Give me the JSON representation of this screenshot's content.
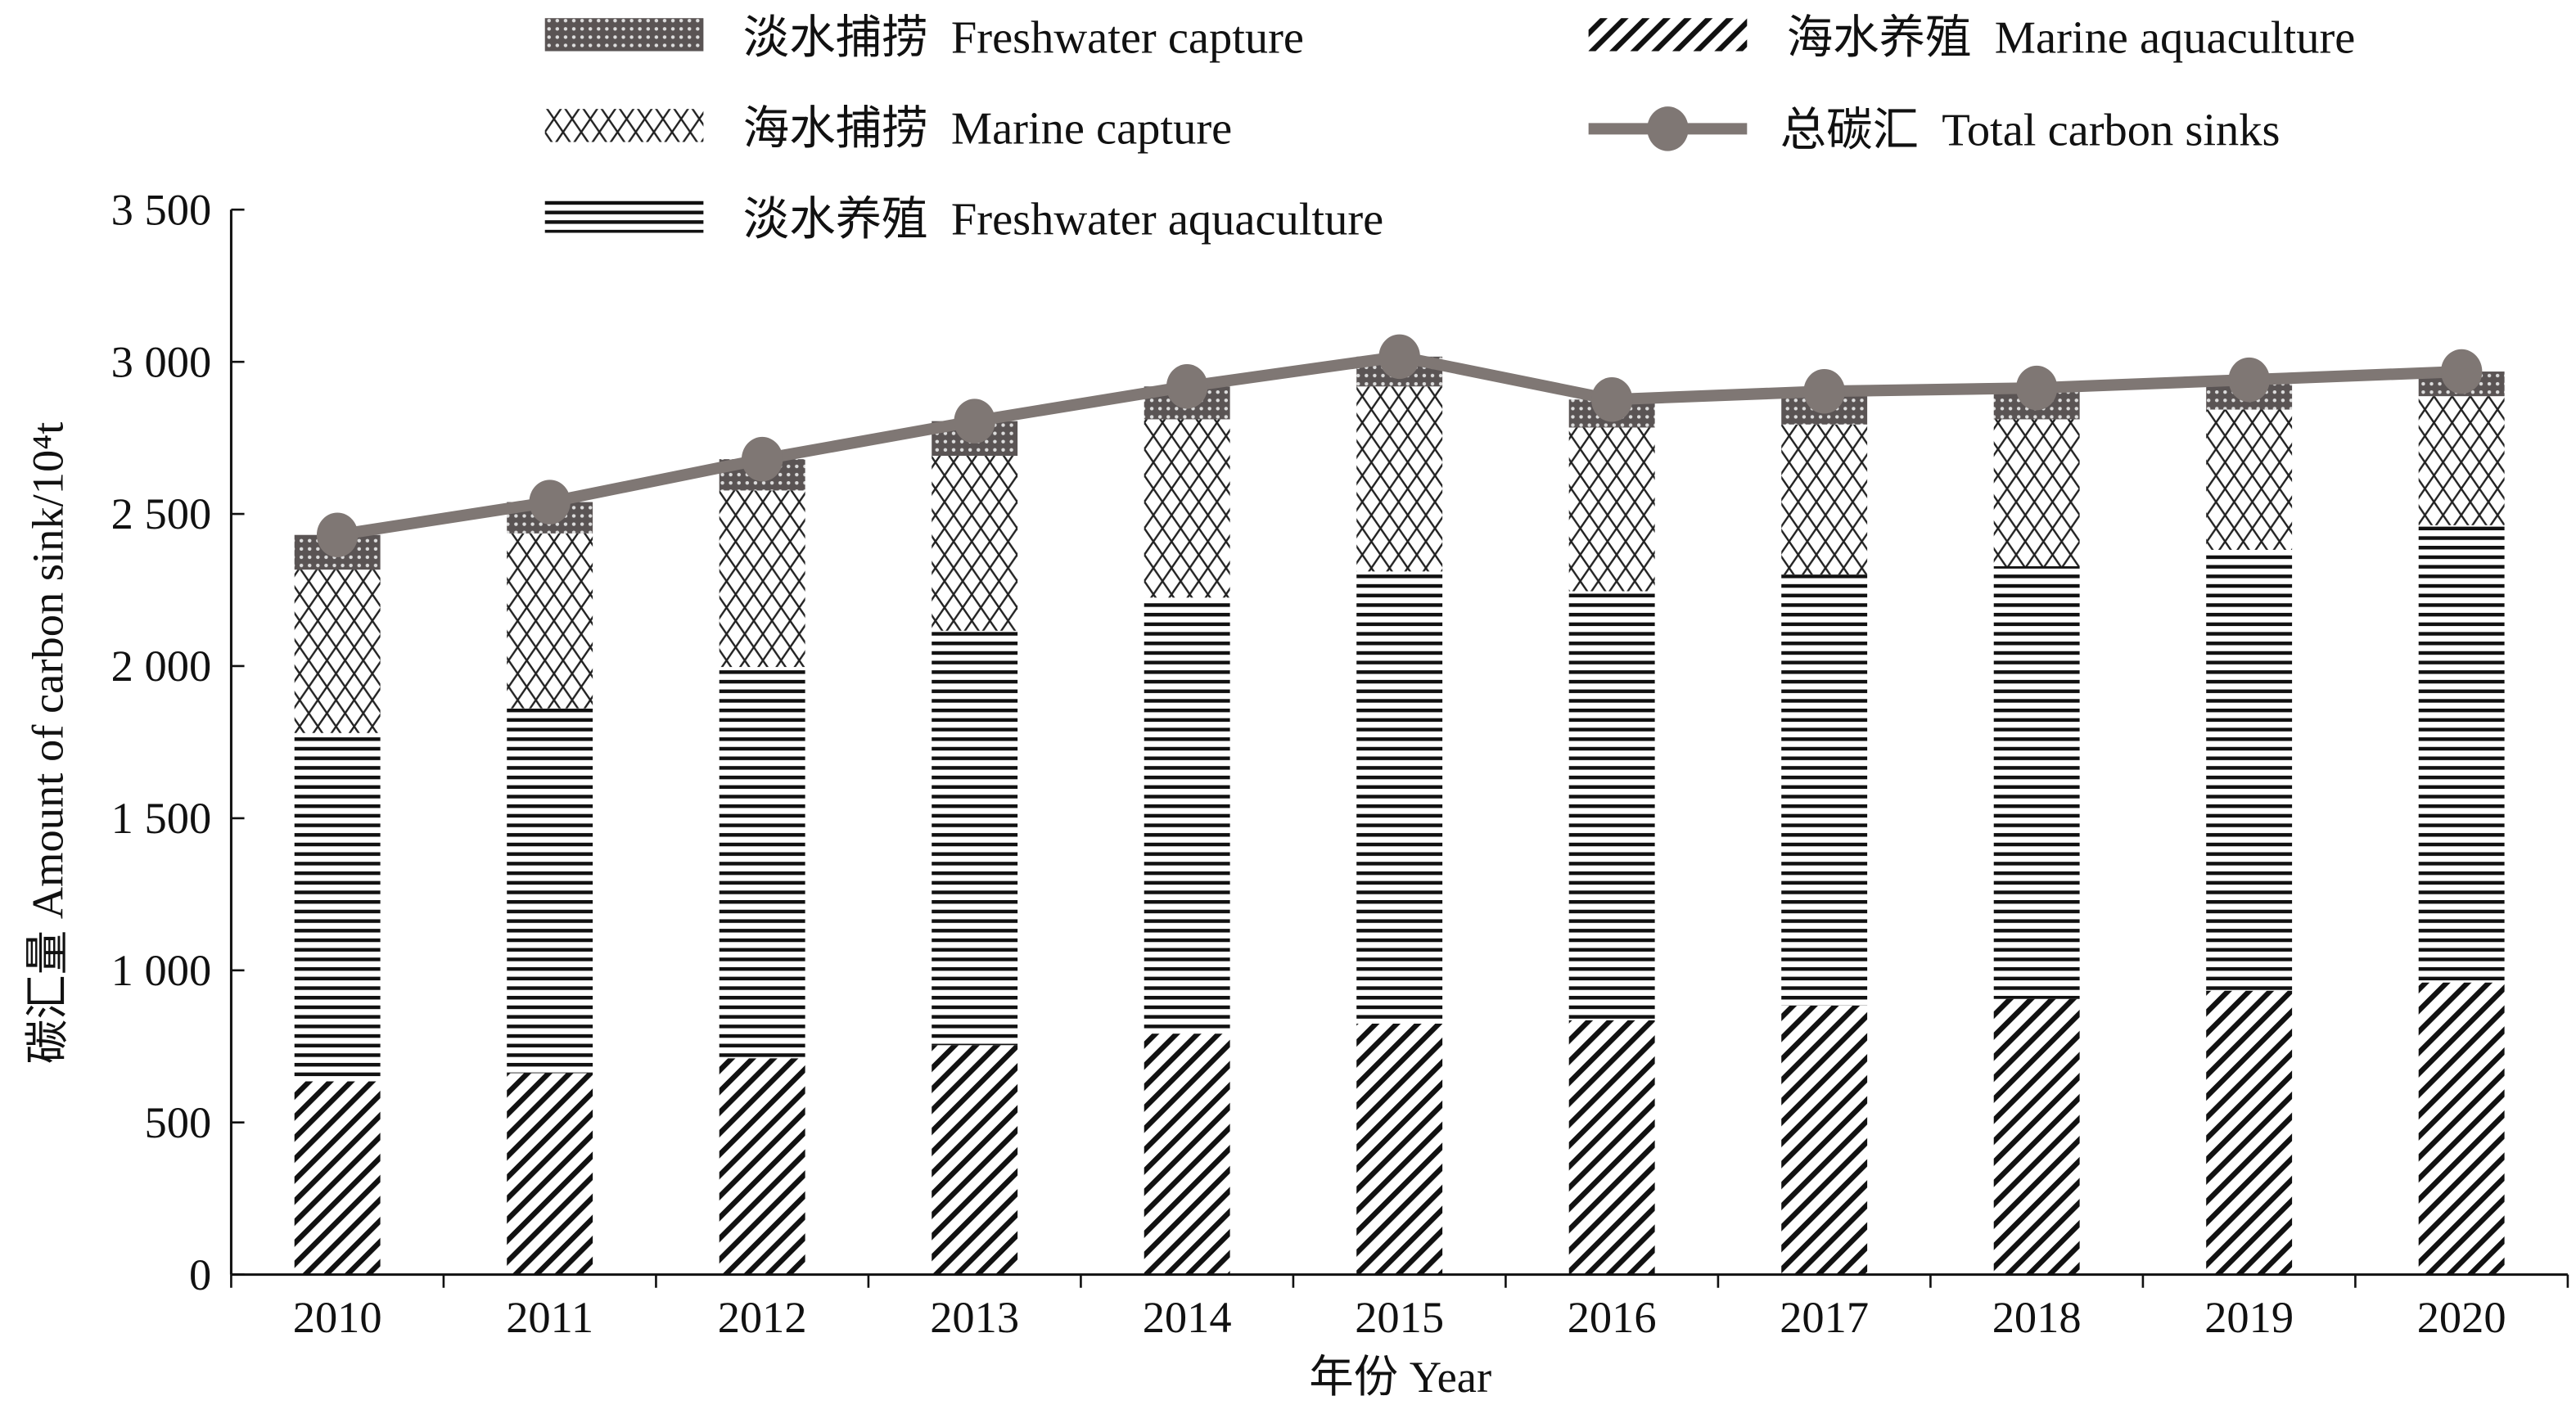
{
  "chart_data": {
    "type": "bar",
    "stacked": true,
    "xlabel": "年份 Year",
    "ylabel": "碳汇量 Amount of carbon sink/10⁴t",
    "ylim": [
      0,
      3500
    ],
    "yticks": [
      0,
      500,
      1000,
      1500,
      2000,
      2500,
      3000,
      3500
    ],
    "ytick_labels": [
      "0",
      "500",
      "1 000",
      "1 500",
      "2 000",
      "2 500",
      "3 000",
      "3 500"
    ],
    "grid": false,
    "legend_position": "top",
    "categories": [
      "2010",
      "2011",
      "2012",
      "2013",
      "2014",
      "2015",
      "2016",
      "2017",
      "2018",
      "2019",
      "2020"
    ],
    "series": [
      {
        "name": "海水养殖  Marine aquaculture",
        "pattern": "diagonal",
        "values": [
          635,
          662,
          711,
          754,
          792,
          825,
          836,
          884,
          906,
          933,
          960
        ]
      },
      {
        "name": "淡水养殖  Freshwater aquaculture",
        "pattern": "horizontal",
        "values": [
          1145,
          1199,
          1286,
          1362,
          1433,
          1486,
          1410,
          1417,
          1422,
          1449,
          1503
        ]
      },
      {
        "name": "海水捕捞  Marine capture",
        "pattern": "crosshatch",
        "values": [
          537,
          575,
          580,
          575,
          586,
          608,
          538,
          493,
          483,
          461,
          424
        ]
      },
      {
        "name": "淡水捕捞  Freshwater capture",
        "pattern": "dense",
        "values": [
          114,
          103,
          103,
          114,
          108,
          98,
          92,
          109,
          103,
          98,
          81
        ]
      }
    ],
    "line": {
      "name": "总碳汇  Total carbon sinks",
      "color": "#7f7774",
      "values": [
        2431,
        2539,
        2680,
        2805,
        2919,
        3017,
        2876,
        2903,
        2914,
        2941,
        2968
      ]
    }
  }
}
